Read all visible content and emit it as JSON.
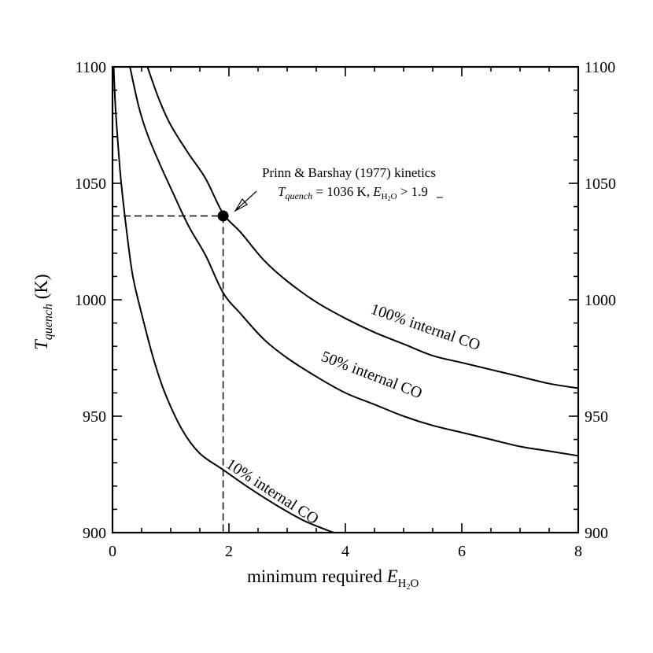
{
  "chart_data": {
    "type": "line",
    "title": "",
    "xlabel": "minimum required",
    "xlabel_symbol": "E",
    "xlabel_sub": "H",
    "xlabel_sub_2": "2",
    "xlabel_sub_O": "O",
    "ylabel_symbol": "T",
    "ylabel_sub": "quench",
    "ylabel_unit": "(K)",
    "xlim": [
      0,
      8
    ],
    "ylim": [
      900,
      1100
    ],
    "xticks": [
      0,
      2,
      4,
      6,
      8
    ],
    "xtick_labels": [
      "0",
      "2",
      "4",
      "6",
      "8"
    ],
    "yticks": [
      900,
      950,
      1000,
      1050,
      1100
    ],
    "ytick_labels": [
      "900",
      "950",
      "1000",
      "1050",
      "1100"
    ],
    "right_axis_labels": true,
    "grid": false,
    "series": [
      {
        "name": "100% internal CO",
        "x": [
          0.6,
          0.8,
          1.0,
          1.3,
          1.6,
          1.9,
          2.2,
          2.6,
          3.0,
          3.5,
          4.0,
          4.5,
          5.0,
          5.5,
          6.0,
          6.5,
          7.0,
          7.5,
          8.0
        ],
        "y": [
          1100,
          1086,
          1075,
          1063,
          1052,
          1037,
          1029,
          1017,
          1008,
          999,
          992,
          986,
          981,
          976,
          973,
          970,
          967,
          964,
          962
        ]
      },
      {
        "name": "50% internal CO",
        "x": [
          0.3,
          0.45,
          0.6,
          0.8,
          1.0,
          1.3,
          1.6,
          1.9,
          2.2,
          2.6,
          3.0,
          3.5,
          4.0,
          4.5,
          5.0,
          5.5,
          6.0,
          6.5,
          7.0,
          7.5,
          8.0
        ],
        "y": [
          1100,
          1083,
          1071,
          1059,
          1048,
          1032,
          1019,
          1003,
          994,
          983,
          975,
          967,
          960,
          955,
          950,
          946,
          943,
          940,
          937,
          935,
          933
        ]
      },
      {
        "name": "10% internal CO",
        "x": [
          0.02,
          0.05,
          0.1,
          0.15,
          0.25,
          0.35,
          0.5,
          0.7,
          0.9,
          1.2,
          1.5,
          1.9,
          2.3,
          2.8,
          3.3,
          3.8
        ],
        "y": [
          1100,
          1083,
          1065,
          1050,
          1028,
          1010,
          994,
          975,
          960,
          944,
          934,
          927,
          920,
          912,
          905,
          900
        ]
      }
    ],
    "marker_point": {
      "x": 1.9,
      "y": 1036
    },
    "dashed_guides": {
      "x": 1.9,
      "y": 1036
    },
    "annotation": {
      "line1": "Prinn & Barshay (1977) kinetics",
      "line2_symbol": "T",
      "line2_sub": "quench",
      "line2_mid": " = 1036 K, ",
      "line2_symbol_2": "E",
      "line2_sub_2": "H",
      "line2_sub_2_num": "2",
      "line2_sub_2_O": "O",
      "line2_end": " > 1.9"
    }
  }
}
